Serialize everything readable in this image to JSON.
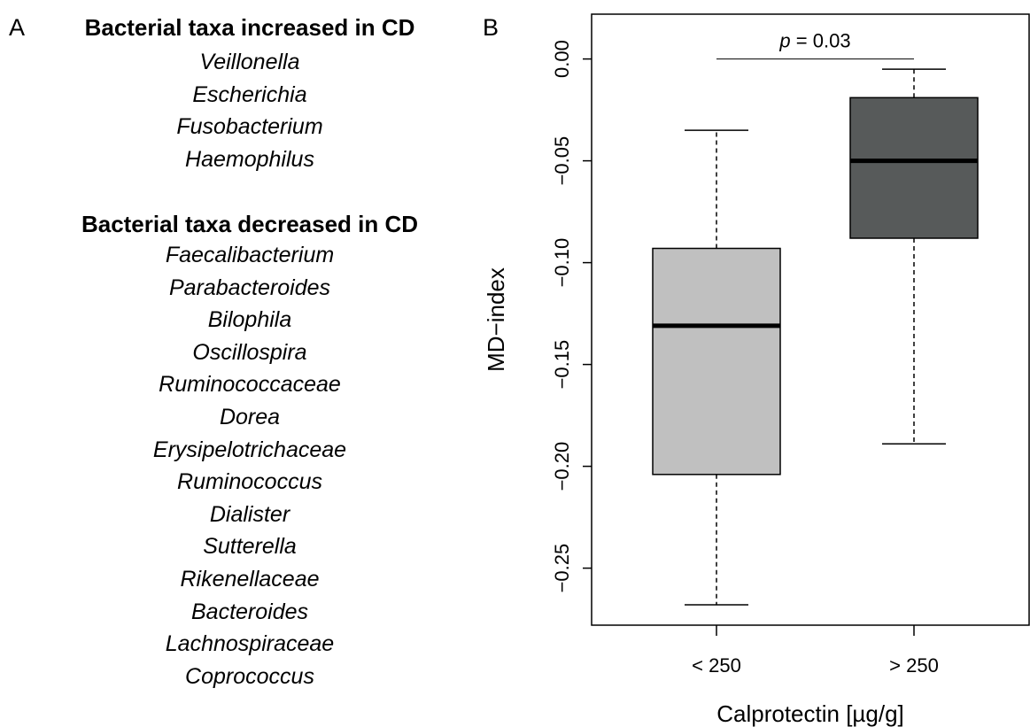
{
  "panel_a": {
    "letter": "A",
    "increased_heading": "Bacterial taxa increased in CD",
    "increased_taxa": [
      "Veillonella",
      "Escherichia",
      "Fusobacterium",
      "Haemophilus"
    ],
    "decreased_heading": "Bacterial taxa decreased in CD",
    "decreased_taxa": [
      "Faecalibacterium",
      "Parabacteroides",
      "Bilophila",
      "Oscillospira",
      "Ruminococcaceae",
      "Dorea",
      "Erysipelotrichaceae",
      "Ruminococcus",
      "Dialister",
      "Sutterella",
      "Rikenellaceae",
      "Bacteroides",
      "Lachnospiraceae",
      "Coprococcus"
    ]
  },
  "panel_b": {
    "letter": "B"
  },
  "chart_data": {
    "type": "box",
    "xlabel": "Calprotectin [µg/g]",
    "ylabel": "MD−index",
    "ylim": [
      -0.278,
      0.022
    ],
    "yticks": [
      0.0,
      -0.05,
      -0.1,
      -0.15,
      -0.2,
      -0.25
    ],
    "ytick_labels": [
      "0.00",
      "−0.05",
      "−0.10",
      "−0.15",
      "−0.20",
      "−0.25"
    ],
    "categories": [
      "< 250",
      "> 250"
    ],
    "boxes": [
      {
        "category": "< 250",
        "whisker_low": -0.268,
        "q1": -0.204,
        "median": -0.131,
        "q3": -0.093,
        "whisker_high": -0.035,
        "fill": "#c0c0c0"
      },
      {
        "category": "> 250",
        "whisker_low": -0.189,
        "q1": -0.088,
        "median": -0.05,
        "q3": -0.019,
        "whisker_high": -0.005,
        "fill": "#575a5a"
      }
    ],
    "significance": {
      "p_symbol": "p",
      "p_rest": " = 0.03",
      "between": [
        "< 250",
        "> 250"
      ],
      "y": 0.0
    },
    "grid": false
  }
}
